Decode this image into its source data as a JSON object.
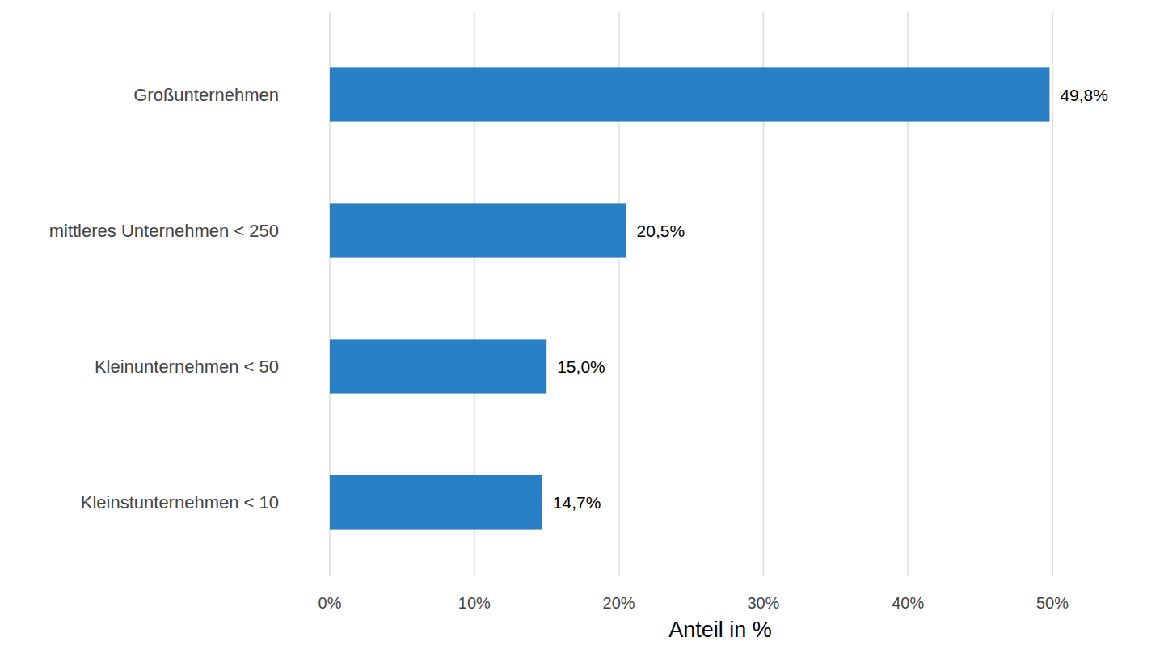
{
  "chart_data": {
    "type": "bar",
    "orientation": "horizontal",
    "categories": [
      "Großunternehmen",
      "mittleres Unternehmen < 250",
      "Kleinunternehmen < 50",
      "Kleinstunternehmen < 10"
    ],
    "values": [
      49.8,
      20.5,
      15.0,
      14.7
    ],
    "value_labels": [
      "49,8%",
      "20,5%",
      "15,0%",
      "14,7%"
    ],
    "color": "#297fc6",
    "xlim": [
      0,
      50
    ],
    "xticks": [
      {
        "value": 0,
        "label": "0%"
      },
      {
        "value": 10,
        "label": "10%"
      },
      {
        "value": 20,
        "label": "20%"
      },
      {
        "value": 30,
        "label": "30%"
      },
      {
        "value": 40,
        "label": "40%"
      },
      {
        "value": 50,
        "label": "50%"
      }
    ],
    "x_label": "Anteil in %",
    "grid": true,
    "data_labels": true
  }
}
